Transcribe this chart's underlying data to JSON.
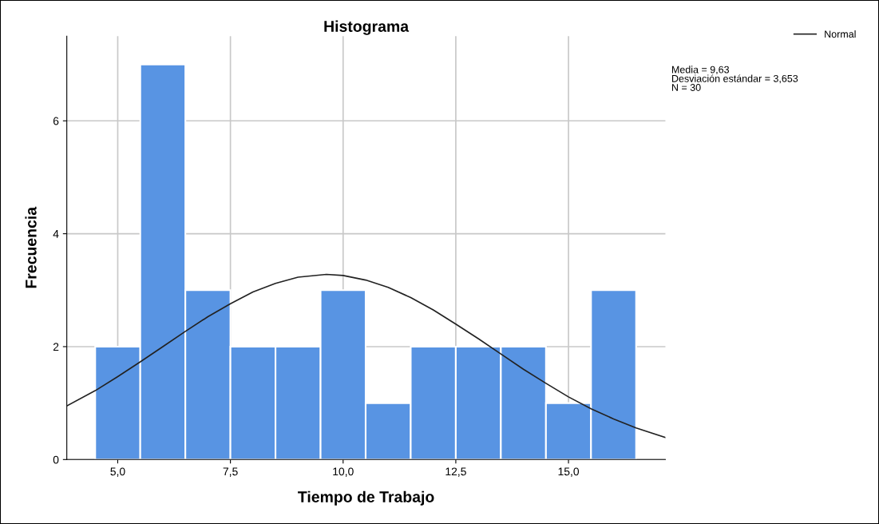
{
  "chart_data": {
    "type": "histogram",
    "title": "Histograma",
    "xlabel": "Tiempo de Trabajo",
    "ylabel": "Frecuencia",
    "bins": [
      4.5,
      5.5,
      6.5,
      7.5,
      8.5,
      9.5,
      10.5,
      11.5,
      12.5,
      13.5,
      14.5,
      15.5,
      16.5
    ],
    "values": [
      2,
      7,
      3,
      2,
      2,
      3,
      1,
      2,
      2,
      2,
      1,
      3
    ],
    "color": "#5894e3",
    "series": [
      {
        "type": "line",
        "name": "Normal",
        "color": "#222222",
        "x": [
          3.87,
          4.5,
          5,
          5.5,
          6,
          6.5,
          7,
          7.5,
          8,
          8.5,
          9,
          9.63,
          10,
          10.5,
          11,
          11.5,
          12,
          12.5,
          13,
          13.5,
          14,
          14.5,
          15,
          15.5,
          16,
          16.5,
          17.15
        ],
        "values": [
          0.95,
          1.22,
          1.47,
          1.73,
          2.0,
          2.27,
          2.53,
          2.76,
          2.97,
          3.12,
          3.23,
          3.28,
          3.26,
          3.18,
          3.05,
          2.87,
          2.65,
          2.4,
          2.14,
          1.87,
          1.6,
          1.35,
          1.11,
          0.9,
          0.72,
          0.56,
          0.39
        ]
      }
    ],
    "xlim": [
      3.87,
      17.15
    ],
    "ylim": [
      0,
      7.5
    ],
    "xticks": [
      {
        "value": 5,
        "label": "5,0"
      },
      {
        "value": 7.5,
        "label": "7,5"
      },
      {
        "value": 10,
        "label": "10,0"
      },
      {
        "value": 12.5,
        "label": "12,5"
      },
      {
        "value": 15,
        "label": "15,0"
      }
    ],
    "yticks": [
      0,
      2,
      4,
      6
    ],
    "grid": true,
    "legend": "top right",
    "annotations": [
      "Media = 9,63\nDesviación estándar = 3,653\nN = 30"
    ]
  }
}
